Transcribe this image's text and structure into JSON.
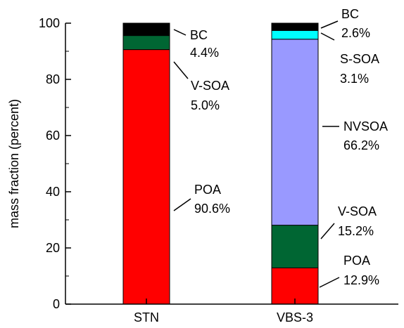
{
  "chart_data": {
    "type": "bar",
    "stacked": true,
    "categories": [
      "STN",
      "VBS-3"
    ],
    "ylabel": "mass fraction (percent)",
    "xlabel": "",
    "ylim": [
      0,
      100
    ],
    "yticks": [
      0,
      20,
      40,
      60,
      80,
      100
    ],
    "grid": false,
    "stacks": [
      {
        "category": "STN",
        "segments": [
          {
            "name": "POA",
            "value": 90.6,
            "label": "90.6%",
            "color": "#ff0000"
          },
          {
            "name": "V-SOA",
            "value": 5.0,
            "label": "5.0%",
            "color": "#006633"
          },
          {
            "name": "BC",
            "value": 4.4,
            "label": "4.4%",
            "color": "#000000"
          }
        ]
      },
      {
        "category": "VBS-3",
        "segments": [
          {
            "name": "POA",
            "value": 12.9,
            "label": "12.9%",
            "color": "#ff0000"
          },
          {
            "name": "V-SOA",
            "value": 15.2,
            "label": "15.2%",
            "color": "#006633"
          },
          {
            "name": "NVSOA",
            "value": 66.2,
            "label": "66.2%",
            "color": "#9999ff"
          },
          {
            "name": "S-SOA",
            "value": 3.1,
            "label": "3.1%",
            "color": "#00ffff"
          },
          {
            "name": "BC",
            "value": 2.6,
            "label": "2.6%",
            "color": "#000000"
          }
        ]
      }
    ]
  }
}
